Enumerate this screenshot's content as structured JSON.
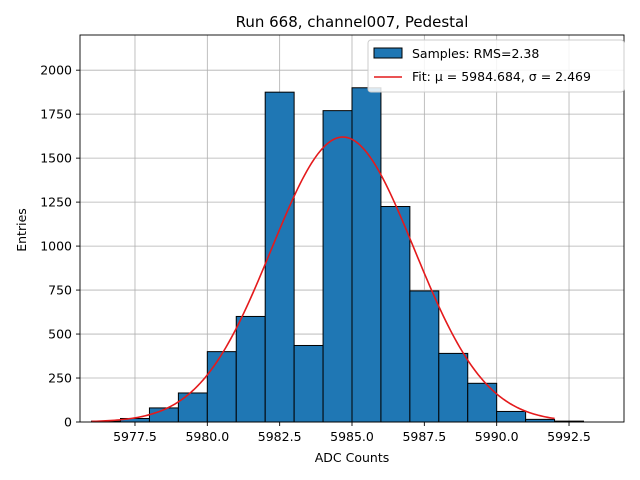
{
  "chart_data": {
    "type": "bar",
    "title": "Run 668, channel007, Pedestal",
    "xlabel": "ADC Counts",
    "ylabel": "Entries",
    "xlim": [
      5975.6,
      5994.4
    ],
    "ylim": [
      0,
      2200
    ],
    "xticks": [
      5977.5,
      5980.0,
      5982.5,
      5985.0,
      5987.5,
      5990.0,
      5992.5
    ],
    "xtick_labels": [
      "5977.5",
      "5980.0",
      "5982.5",
      "5985.0",
      "5987.5",
      "5990.0",
      "5992.5"
    ],
    "yticks": [
      0,
      250,
      500,
      750,
      1000,
      1250,
      1500,
      1750,
      2000
    ],
    "ytick_labels": [
      "0",
      "250",
      "500",
      "750",
      "1000",
      "1250",
      "1500",
      "1750",
      "2000"
    ],
    "grid": true,
    "legend_position": "top-right",
    "series": [
      {
        "name": "Samples: RMS=2.38",
        "kind": "histogram",
        "color": "#1f77b4",
        "edge_color": "#000000",
        "bin_edges": [
          5976,
          5977,
          5978,
          5979,
          5980,
          5981,
          5982,
          5983,
          5984,
          5985,
          5986,
          5987,
          5988,
          5989,
          5990,
          5991,
          5992,
          5993
        ],
        "values": [
          5,
          20,
          80,
          165,
          400,
          600,
          1875,
          435,
          1770,
          1900,
          1225,
          745,
          390,
          220,
          60,
          15,
          5
        ]
      },
      {
        "name": "Fit: μ = 5984.684, σ = 2.469",
        "kind": "gaussian",
        "color": "#e41a1c",
        "mu": 5984.684,
        "sigma": 2.469,
        "amplitude": 1620,
        "x_range": [
          5976,
          5992
        ]
      }
    ]
  }
}
